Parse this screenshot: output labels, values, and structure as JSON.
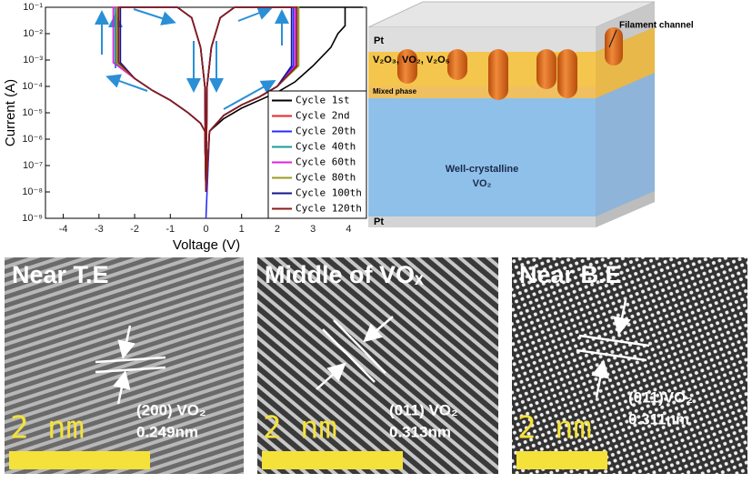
{
  "chart_data": {
    "type": "line",
    "xlabel": "Voltage (V)",
    "ylabel": "Current (A)",
    "log_y": true,
    "legend": "lower right",
    "xlim": [
      -4.5,
      4.5
    ],
    "xticks": [
      -4,
      -3,
      -2,
      -1,
      0,
      1,
      2,
      3,
      4
    ],
    "ylim": [
      1e-09,
      0.1
    ],
    "yticks": [
      {
        "value": 1e-09,
        "label": "10⁻⁹"
      },
      {
        "value": 1e-08,
        "label": "10⁻⁸"
      },
      {
        "value": 1e-07,
        "label": "10⁻⁷"
      },
      {
        "value": 1e-06,
        "label": "10⁻⁶"
      },
      {
        "value": 1e-05,
        "label": "10⁻⁵"
      },
      {
        "value": 0.0001,
        "label": "10⁻⁴"
      },
      {
        "value": 0.001,
        "label": "10⁻³"
      },
      {
        "value": 0.01,
        "label": "10⁻²"
      },
      {
        "value": 0.1,
        "label": "10⁻¹"
      }
    ],
    "series": [
      {
        "name": "Cycle 1st",
        "color": "#000000",
        "x": [
          0,
          0.1,
          0.5,
          1,
          1.5,
          2,
          2.5,
          3,
          3.5,
          3.7,
          3.9,
          3.9,
          4.4,
          1.5,
          0.8,
          0.4,
          0.15,
          0.03,
          0,
          -0.03,
          -0.15,
          -0.5,
          -1,
          -1.5,
          -2,
          -2.5,
          -2.5,
          -1.5,
          -0.8,
          -0.4,
          -0.15,
          -0.03,
          0
        ],
        "values": [
          1e-08,
          2e-06,
          6e-06,
          1.5e-05,
          3e-05,
          6e-05,
          0.00015,
          0.0006,
          0.003,
          0.01,
          0.02,
          0.1,
          0.1,
          0.1,
          0.1,
          0.04,
          0.003,
          0.0001,
          1e-08,
          2e-06,
          4e-06,
          1e-05,
          3e-05,
          7e-05,
          0.0002,
          0.0008,
          0.1,
          0.1,
          0.1,
          0.04,
          0.003,
          0.0001,
          1e-08
        ]
      },
      {
        "name": "Cycle 2nd",
        "color": "#e8252a",
        "x": [
          0,
          0.1,
          0.5,
          1,
          1.5,
          2,
          2.5,
          2.5,
          1.5,
          0.8,
          0.4,
          0.15,
          0.03,
          0,
          -0.03,
          -0.15,
          -0.5,
          -1,
          -1.5,
          -2,
          -2.5,
          -2.5,
          -1.5,
          -0.8,
          -0.4,
          -0.15,
          -0.03,
          0
        ],
        "values": [
          1e-08,
          2e-06,
          8e-06,
          2e-05,
          4e-05,
          0.0001,
          0.0006,
          0.1,
          0.1,
          0.1,
          0.04,
          0.003,
          0.0001,
          1e-08,
          2e-06,
          4e-06,
          1e-05,
          3e-05,
          7e-05,
          0.0002,
          0.0008,
          0.1,
          0.1,
          0.1,
          0.04,
          0.003,
          0.0001,
          1e-08
        ]
      },
      {
        "name": "Cycle 20th",
        "color": "#2a2aff",
        "x": [
          0,
          0.1,
          0.5,
          1,
          1.5,
          2,
          2.45,
          2.45,
          1.5,
          0.8,
          0.4,
          0.15,
          0.03,
          0,
          -0.03,
          -0.15,
          -0.5,
          -1,
          -1.5,
          -2,
          -2.45,
          -2.45,
          -1.5,
          -0.8,
          -0.4,
          -0.15,
          -0.03,
          0
        ],
        "values": [
          1e-09,
          2e-06,
          8e-06,
          2e-05,
          4e-05,
          0.0001,
          0.0006,
          0.1,
          0.1,
          0.1,
          0.04,
          0.003,
          0.0001,
          1e-08,
          2e-06,
          4e-06,
          1e-05,
          3e-05,
          7e-05,
          0.0002,
          0.0008,
          0.1,
          0.1,
          0.1,
          0.04,
          0.003,
          0.0001,
          1e-08
        ]
      },
      {
        "name": "Cycle 40th",
        "color": "#1a9a9a",
        "x": [
          0,
          0.1,
          0.5,
          1,
          1.5,
          2,
          2.55,
          2.55,
          1.5,
          0.8,
          0.4,
          0.15,
          0.03,
          0,
          -0.03,
          -0.15,
          -0.5,
          -1,
          -1.5,
          -2,
          -2.55,
          -2.55,
          -1.5,
          -0.8,
          -0.4,
          -0.15,
          -0.03,
          0
        ],
        "values": [
          1e-08,
          2e-06,
          8e-06,
          2e-05,
          4e-05,
          0.0001,
          0.0006,
          0.1,
          0.1,
          0.1,
          0.04,
          0.003,
          0.0001,
          1e-08,
          2e-06,
          4e-06,
          1e-05,
          3e-05,
          7e-05,
          0.0002,
          0.0008,
          0.1,
          0.1,
          0.1,
          0.04,
          0.003,
          0.0001,
          1e-08
        ]
      },
      {
        "name": "Cycle 60th",
        "color": "#e020e0",
        "x": [
          0,
          0.1,
          0.5,
          1,
          1.5,
          2,
          2.5,
          2.5,
          1.5,
          0.8,
          0.4,
          0.15,
          0.03,
          0,
          -0.03,
          -0.15,
          -0.5,
          -1,
          -1.5,
          -2,
          -2.6,
          -2.6,
          -1.5,
          -0.8,
          -0.4,
          -0.15,
          -0.03,
          0
        ],
        "values": [
          1e-08,
          2e-06,
          8e-06,
          2e-05,
          4e-05,
          0.0001,
          0.0006,
          0.1,
          0.1,
          0.1,
          0.04,
          0.003,
          0.0001,
          1e-08,
          2e-06,
          4e-06,
          1e-05,
          3e-05,
          7e-05,
          0.0002,
          0.0008,
          0.1,
          0.1,
          0.1,
          0.04,
          0.003,
          0.0001,
          1e-08
        ]
      },
      {
        "name": "Cycle 80th",
        "color": "#9a9a20",
        "x": [
          0,
          0.1,
          0.5,
          1,
          1.5,
          2,
          2.6,
          2.6,
          1.5,
          0.8,
          0.4,
          0.15,
          0.03,
          0,
          -0.03,
          -0.15,
          -0.5,
          -1,
          -1.5,
          -2,
          -2.5,
          -2.5,
          -1.5,
          -0.8,
          -0.4,
          -0.15,
          -0.03,
          0
        ],
        "values": [
          1e-08,
          2e-06,
          8e-06,
          2e-05,
          4e-05,
          0.0001,
          0.0006,
          0.1,
          0.1,
          0.1,
          0.04,
          0.003,
          0.0001,
          1e-08,
          2e-06,
          4e-06,
          1e-05,
          3e-05,
          7e-05,
          0.0002,
          0.0008,
          0.1,
          0.1,
          0.1,
          0.04,
          0.003,
          0.0001,
          1e-08
        ]
      },
      {
        "name": "Cycle 100th",
        "color": "#14148c",
        "x": [
          0,
          0.1,
          0.5,
          1,
          1.5,
          2,
          2.4,
          2.4,
          1.5,
          0.8,
          0.4,
          0.15,
          0.03,
          0,
          -0.03,
          -0.15,
          -0.5,
          -1,
          -1.5,
          -2,
          -2.4,
          -2.4,
          -1.5,
          -0.8,
          -0.4,
          -0.15,
          -0.03,
          0
        ],
        "values": [
          1e-08,
          2e-06,
          8e-06,
          2e-05,
          4e-05,
          0.0001,
          0.0006,
          0.1,
          0.1,
          0.1,
          0.04,
          0.003,
          0.0001,
          1e-08,
          2e-06,
          4e-06,
          1e-05,
          3e-05,
          7e-05,
          0.0002,
          0.0008,
          0.1,
          0.1,
          0.1,
          0.04,
          0.003,
          0.0001,
          1e-08
        ]
      },
      {
        "name": "Cycle 120th",
        "color": "#8b1a1a",
        "x": [
          0,
          0.1,
          0.5,
          1,
          1.5,
          2,
          2.55,
          2.55,
          1.5,
          0.8,
          0.4,
          0.15,
          0.03,
          0,
          -0.03,
          -0.15,
          -0.5,
          -1,
          -1.5,
          -2,
          -2.45,
          -2.45,
          -1.5,
          -0.8,
          -0.4,
          -0.15,
          -0.03,
          0
        ],
        "values": [
          1e-08,
          2e-06,
          8e-06,
          2e-05,
          4e-05,
          0.0001,
          0.0006,
          0.1,
          0.1,
          0.1,
          0.04,
          0.003,
          0.0001,
          1e-08,
          2e-06,
          4e-06,
          1e-05,
          3e-05,
          7e-05,
          0.0002,
          0.0008,
          0.1,
          0.1,
          0.1,
          0.04,
          0.003,
          0.0001,
          1e-08
        ]
      }
    ]
  },
  "diagram": {
    "top_electrode": "Pt",
    "oxide_layer": "V₂O₃, VO₂, V₂O₅",
    "mixed_layer": "Mixed phase",
    "filament": "Filament channel",
    "bulk_line1": "Well-crystalline",
    "bulk_line2": "VO₂",
    "bottom_electrode": "Pt"
  },
  "tem_panels": [
    {
      "title": "Near T.E",
      "plane": "(200) VO₂",
      "spacing": "0.249nm",
      "scale": "2  nm"
    },
    {
      "title": "Middle of VOₓ",
      "plane": "(011) VO₂",
      "spacing": "0.313nm",
      "scale": "2  nm"
    },
    {
      "title": "Near B.E",
      "plane": "(011)VO₂",
      "spacing": "0.311nm",
      "scale": "2  nm"
    }
  ]
}
